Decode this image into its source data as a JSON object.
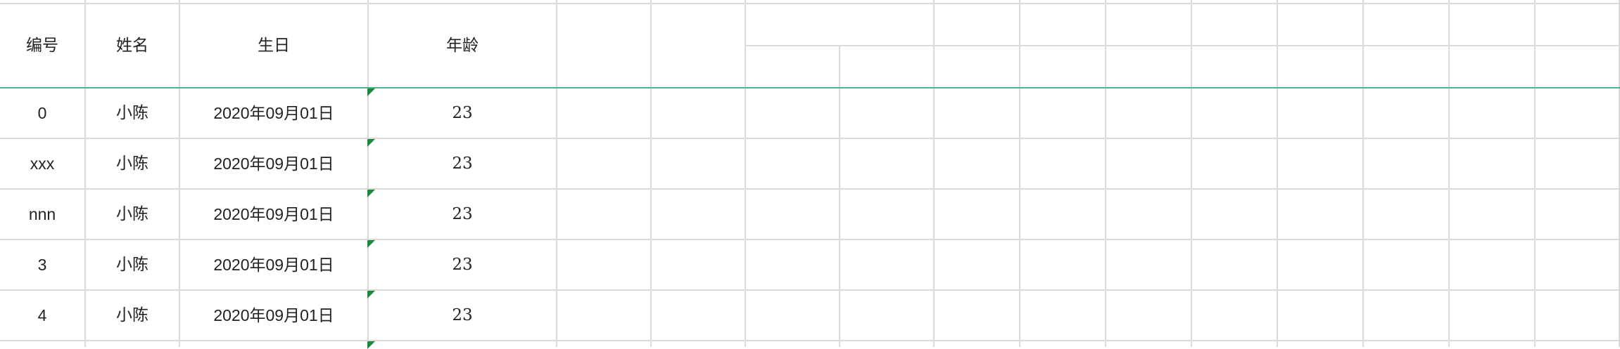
{
  "sheet": {
    "headers": [
      "编号",
      "姓名",
      "生日",
      "年龄"
    ],
    "rows": [
      {
        "id": "0",
        "name": "小陈",
        "birthday": "2020年09月01日",
        "age": "23"
      },
      {
        "id": "xxx",
        "name": "小陈",
        "birthday": "2020年09月01日",
        "age": "23"
      },
      {
        "id": "nnn",
        "name": "小陈",
        "birthday": "2020年09月01日",
        "age": "23"
      },
      {
        "id": "3",
        "name": "小陈",
        "birthday": "2020年09月01日",
        "age": "23"
      },
      {
        "id": "4",
        "name": "小陈",
        "birthday": "2020年09月01日",
        "age": "23"
      }
    ]
  },
  "colors": {
    "grid": "#d9d9d9",
    "header_separator": "#4db38a",
    "comment_marker": "#1a8a3a"
  }
}
